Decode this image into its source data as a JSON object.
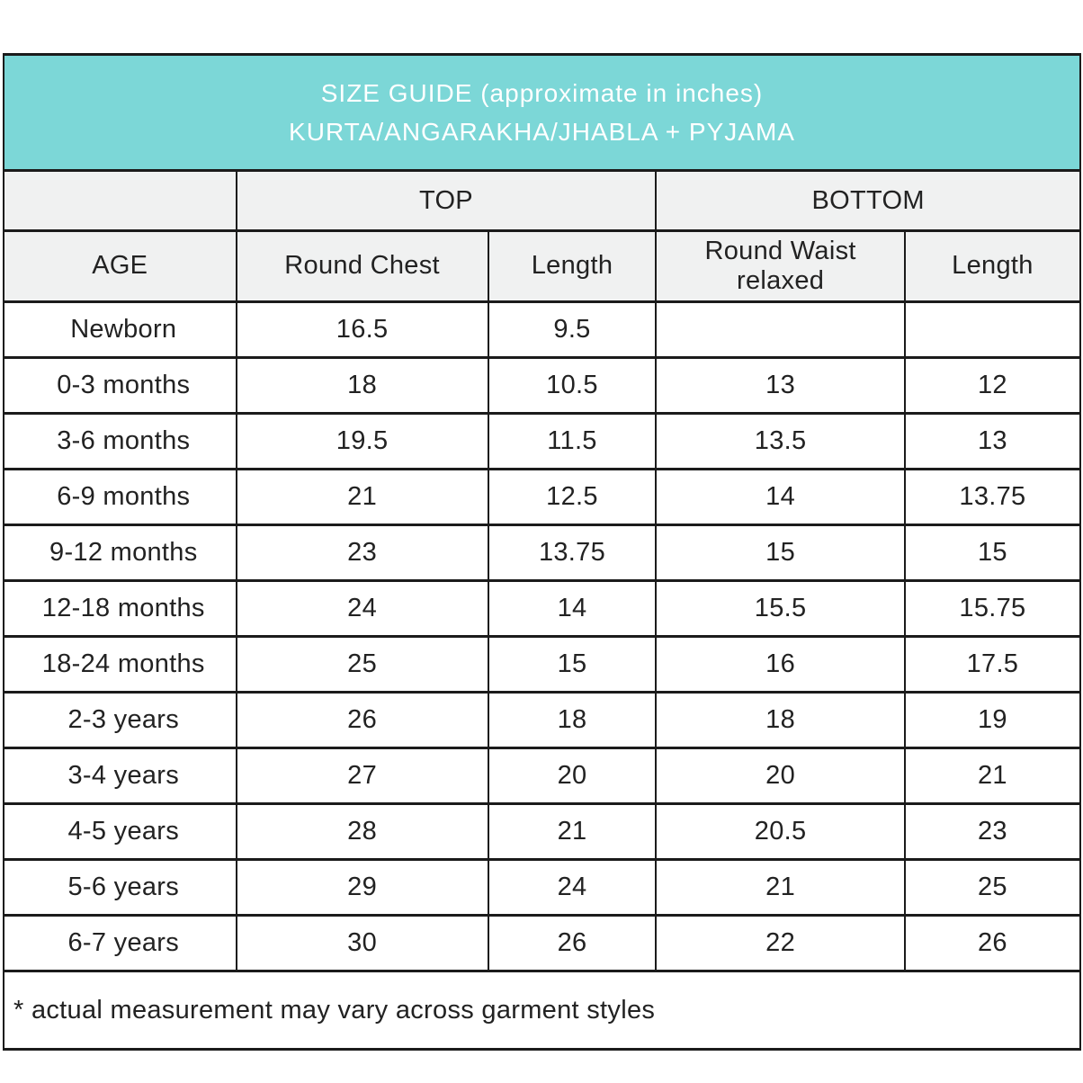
{
  "banner": {
    "title": "SIZE GUIDE (approximate in inches)",
    "subtitle": "KURTA/ANGARAKHA/JHABLA + PYJAMA"
  },
  "table": {
    "group_headers": {
      "top": "TOP",
      "bottom": "BOTTOM"
    },
    "column_headers": {
      "age": "AGE",
      "round_chest": "Round Chest",
      "top_length": "Length",
      "round_waist": "Round Waist relaxed",
      "bottom_length": "Length"
    },
    "rows": [
      {
        "age": "Newborn",
        "top_round_chest": "16.5",
        "top_length": "9.5",
        "bottom_round_waist": "",
        "bottom_length": ""
      },
      {
        "age": "0-3 months",
        "top_round_chest": "18",
        "top_length": "10.5",
        "bottom_round_waist": "13",
        "bottom_length": "12"
      },
      {
        "age": "3-6 months",
        "top_round_chest": "19.5",
        "top_length": "11.5",
        "bottom_round_waist": "13.5",
        "bottom_length": "13"
      },
      {
        "age": "6-9 months",
        "top_round_chest": "21",
        "top_length": "12.5",
        "bottom_round_waist": "14",
        "bottom_length": "13.75"
      },
      {
        "age": "9-12 months",
        "top_round_chest": "23",
        "top_length": "13.75",
        "bottom_round_waist": "15",
        "bottom_length": "15"
      },
      {
        "age": "12-18 months",
        "top_round_chest": "24",
        "top_length": "14",
        "bottom_round_waist": "15.5",
        "bottom_length": "15.75"
      },
      {
        "age": "18-24 months",
        "top_round_chest": "25",
        "top_length": "15",
        "bottom_round_waist": "16",
        "bottom_length": "17.5"
      },
      {
        "age": "2-3 years",
        "top_round_chest": "26",
        "top_length": "18",
        "bottom_round_waist": "18",
        "bottom_length": "19"
      },
      {
        "age": "3-4 years",
        "top_round_chest": "27",
        "top_length": "20",
        "bottom_round_waist": "20",
        "bottom_length": "21"
      },
      {
        "age": "4-5 years",
        "top_round_chest": "28",
        "top_length": "21",
        "bottom_round_waist": "20.5",
        "bottom_length": "23"
      },
      {
        "age": "5-6 years",
        "top_round_chest": "29",
        "top_length": "24",
        "bottom_round_waist": "21",
        "bottom_length": "25"
      },
      {
        "age": "6-7 years",
        "top_round_chest": "30",
        "top_length": "26",
        "bottom_round_waist": "22",
        "bottom_length": "26"
      }
    ]
  },
  "footnote": "* actual measurement may vary across garment styles",
  "colors": {
    "banner_bg": "#7cd7d7",
    "banner_text": "#ffffff",
    "header_bg": "#f0f1f1",
    "border": "#1b1b1b",
    "text": "#222222"
  }
}
